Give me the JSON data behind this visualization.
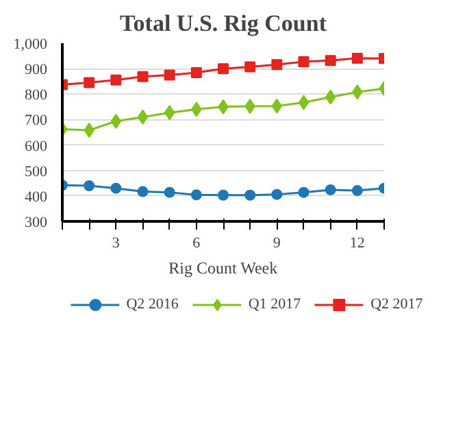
{
  "chart_data": {
    "type": "line",
    "title": "Total U.S. Rig Count",
    "xlabel": "Rig Count Week",
    "x": [
      1,
      2,
      3,
      4,
      5,
      6,
      7,
      8,
      9,
      10,
      11,
      12,
      13
    ],
    "xlim": [
      1,
      13
    ],
    "xticks": [
      {
        "value": 1,
        "label": null
      },
      {
        "value": 2,
        "label": null
      },
      3,
      {
        "value": 4,
        "label": null
      },
      {
        "value": 5,
        "label": null
      },
      6,
      {
        "value": 7,
        "label": null
      },
      {
        "value": 8,
        "label": null
      },
      9,
      {
        "value": 10,
        "label": null
      },
      {
        "value": 11,
        "label": null
      },
      12,
      {
        "value": 13,
        "label": null
      }
    ],
    "ylim": [
      300,
      1000
    ],
    "yticks": [
      300,
      400,
      500,
      600,
      700,
      800,
      900,
      {
        "value": 1000,
        "label": "1,000"
      }
    ],
    "grid": "y",
    "legend": "bottom",
    "series": [
      {
        "name": "Q2 2016",
        "color": "#1f77b4",
        "marker": "circle",
        "values": [
          442,
          440,
          430,
          417,
          414,
          404,
          403,
          403,
          406,
          414,
          424,
          421,
          430
        ]
      },
      {
        "name": "Q1 2017",
        "color": "#7fc31c",
        "marker": "diamond",
        "values": [
          662,
          658,
          693,
          710,
          727,
          740,
          750,
          752,
          753,
          767,
          788,
          808,
          822
        ]
      },
      {
        "name": "Q2 2017",
        "color": "#e3241f",
        "marker": "square",
        "values": [
          837,
          845,
          855,
          869,
          875,
          884,
          900,
          907,
          916,
          927,
          932,
          941,
          940
        ]
      }
    ]
  }
}
